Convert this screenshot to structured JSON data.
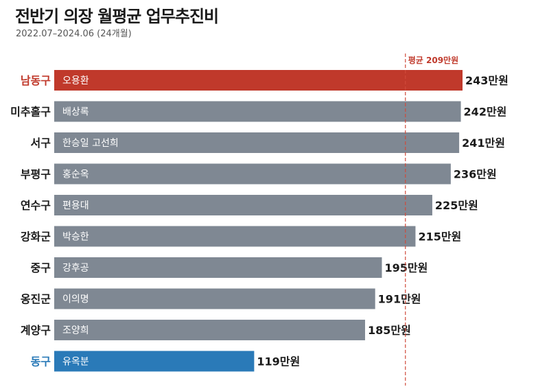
{
  "header": {
    "title": "전반기 의장 월평균 업무추진비",
    "subtitle": "2022.07–2024.06 (24개월)"
  },
  "chart_data": {
    "type": "bar",
    "orientation": "horizontal",
    "title": "전반기 의장 월평균 업무추진비",
    "subtitle": "2022.07–2024.06 (24개월)",
    "unit": "만원",
    "categories": [
      "남동구",
      "미추홀구",
      "서구",
      "부평구",
      "연수구",
      "강화군",
      "중구",
      "옹진군",
      "계양구",
      "동구"
    ],
    "names": [
      "오용환",
      "배상록",
      "한승일 고선희",
      "홍순옥",
      "편용대",
      "박승한",
      "강후공",
      "이의명",
      "조양희",
      "유옥분"
    ],
    "values": [
      243,
      242,
      241,
      236,
      225,
      215,
      195,
      191,
      185,
      119
    ],
    "value_labels": [
      "243만원",
      "242만원",
      "241만원",
      "236만원",
      "225만원",
      "215만원",
      "195만원",
      "191만원",
      "185만원",
      "119만원"
    ],
    "highlight": [
      "red",
      "gray",
      "gray",
      "gray",
      "gray",
      "gray",
      "gray",
      "gray",
      "gray",
      "blue"
    ],
    "average": {
      "value": 209,
      "label": "평균 209만원"
    },
    "colors": {
      "red": "#c0392b",
      "gray": "#7f8893",
      "blue": "#2a7ab8",
      "average_line": "#d04a3a"
    },
    "grid": false,
    "legend": "none"
  }
}
